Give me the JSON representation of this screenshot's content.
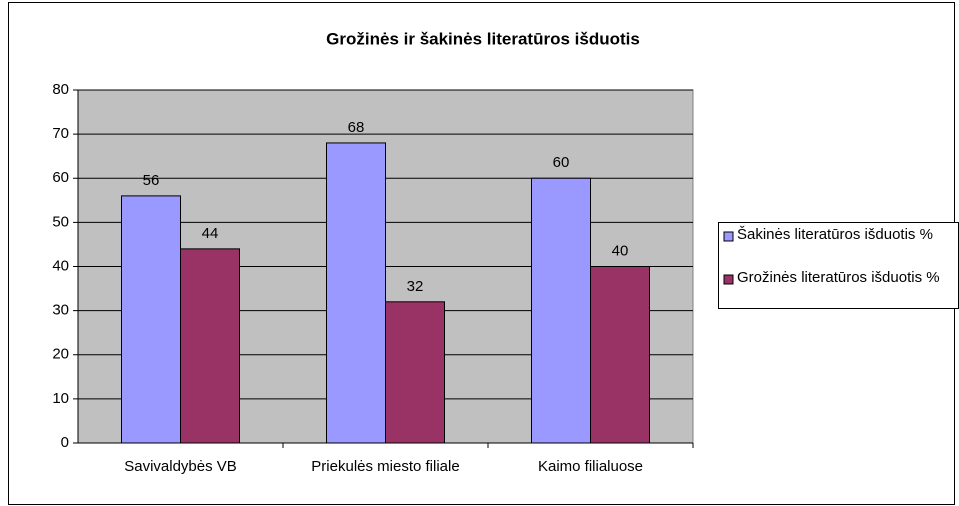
{
  "chart_data": {
    "type": "bar",
    "title": "Grožinės ir šakinės literatūros išduotis",
    "categories": [
      "Savivaldybės VB",
      "Priekulės miesto filiale",
      "Kaimo filialuose"
    ],
    "series": [
      {
        "name": "Šakinės literatūros išduotis %",
        "color": "#9999ff",
        "values": [
          56,
          68,
          60
        ]
      },
      {
        "name": "Grožinės literatūros išduotis %",
        "color": "#993366",
        "values": [
          44,
          32,
          40
        ]
      }
    ],
    "ylim": [
      0,
      80
    ],
    "yticks": [
      0,
      10,
      20,
      30,
      40,
      50,
      60,
      70,
      80
    ],
    "grid": true,
    "legend": "right",
    "plot_background": "#c0c0c0"
  }
}
